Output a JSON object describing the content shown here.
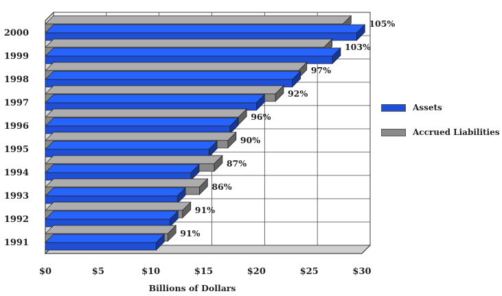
{
  "chart_data": {
    "type": "bar",
    "orientation": "horizontal",
    "categories": [
      "2000",
      "1999",
      "1998",
      "1997",
      "1996",
      "1995",
      "1994",
      "1993",
      "1992",
      "1991"
    ],
    "series": [
      {
        "name": "Assets",
        "color": "#1f4fd6",
        "values": [
          29.5,
          27.2,
          23.4,
          20.0,
          17.5,
          15.5,
          13.8,
          12.5,
          11.8,
          10.5
        ]
      },
      {
        "name": "Accrued Liabilities",
        "color": "#8a8a8a",
        "values": [
          28.2,
          26.4,
          24.0,
          21.8,
          18.3,
          17.3,
          16.0,
          14.6,
          13.0,
          11.6
        ]
      }
    ],
    "bar_labels": [
      "105%",
      "103%",
      "97%",
      "92%",
      "96%",
      "90%",
      "87%",
      "86%",
      "91%",
      "91%"
    ],
    "xlabel": "Billions of Dollars",
    "ylabel": "",
    "title": "",
    "xlim": [
      0,
      30
    ],
    "x_ticks": [
      "$0",
      "$5",
      "$10",
      "$15",
      "$20",
      "$25",
      "$30"
    ],
    "grid": true,
    "legend_position": "right"
  }
}
